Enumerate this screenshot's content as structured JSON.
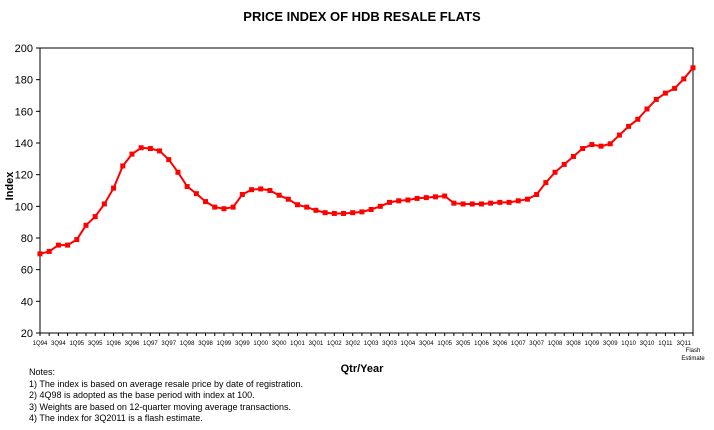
{
  "chart_data": {
    "type": "line",
    "title": "PRICE INDEX OF HDB RESALE FLATS",
    "xlabel": "Qtr/Year",
    "ylabel": "Index",
    "ylim": [
      20,
      200
    ],
    "yticks": [
      20,
      40,
      60,
      80,
      100,
      120,
      140,
      160,
      180,
      200
    ],
    "grid": false,
    "legend": "none",
    "series_color": "#ff0000",
    "x_tick_labels": [
      "1Q94",
      "3Q94",
      "1Q95",
      "3Q95",
      "1Q96",
      "3Q96",
      "1Q97",
      "3Q97",
      "1Q98",
      "3Q98",
      "1Q99",
      "3Q99",
      "1Q00",
      "3Q00",
      "1Q01",
      "3Q01",
      "1Q02",
      "3Q02",
      "1Q03",
      "3Q03",
      "1Q04",
      "3Q04",
      "1Q05",
      "3Q05",
      "1Q06",
      "3Q06",
      "1Q07",
      "3Q07",
      "1Q08",
      "3Q08",
      "1Q09",
      "3Q09",
      "1Q10",
      "3Q10",
      "1Q11",
      "3Q11"
    ],
    "last_tick_extra": [
      "Flash",
      "Estimate"
    ],
    "series": [
      {
        "values": [
          70.0,
          71.5,
          75.5,
          75.5,
          79.0,
          88.0,
          93.5,
          101.5,
          111.5,
          125.5,
          133.0,
          137.0,
          136.5,
          135.0,
          129.5,
          121.5,
          112.5,
          108.0,
          103.0,
          99.5,
          98.5,
          99.5,
          107.5,
          110.5,
          111.0,
          110.0,
          107.0,
          104.5,
          101.0,
          99.5,
          97.5,
          96.0,
          95.5,
          95.5,
          96.0,
          96.5,
          98.0,
          100.0,
          102.5,
          103.5,
          104.0,
          105.0,
          105.5,
          106.0,
          106.5,
          102.0,
          101.5,
          101.5,
          101.5,
          102.0,
          102.5,
          102.5,
          103.5,
          104.5,
          107.5,
          115.0,
          121.5,
          126.5,
          131.5,
          136.5,
          139.0,
          138.0,
          139.5,
          145.0,
          150.5,
          155.0,
          161.5,
          167.5,
          171.5,
          174.5,
          180.5,
          187.5
        ]
      }
    ]
  },
  "notes": {
    "heading": "Notes:",
    "items": [
      "1) The index  is based on average resale price by date of registration.",
      "2) 4Q98 is adopted as the base period with index at 100.",
      "3) Weights are based on 12-quarter moving average transactions.",
      "4) The index for 3Q2011 is a flash estimate."
    ]
  }
}
